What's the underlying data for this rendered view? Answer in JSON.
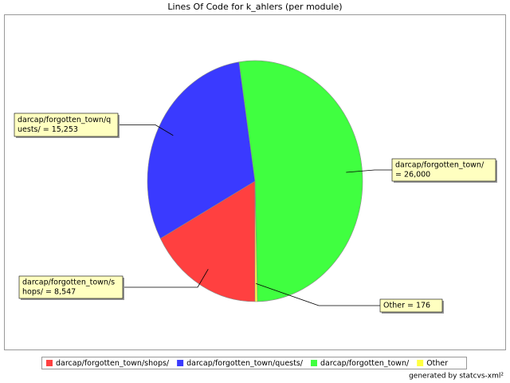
{
  "chart_data": {
    "type": "pie",
    "title": "Lines Of Code for k_ahlers (per module)",
    "categories": [
      "darcap/forgotten_town/shops/",
      "darcap/forgotten_town/quests/",
      "darcap/forgotten_town/",
      "Other"
    ],
    "values": [
      8547,
      15253,
      26000,
      176
    ],
    "value_labels": [
      [
        "darcap/forgotten_town/s",
        "hops/ = 8,547"
      ],
      [
        "darcap/forgotten_town/q",
        "uests/ = 15,253"
      ],
      [
        "darcap/forgotten_town/",
        "= 26,000"
      ],
      [
        "Other = 176"
      ]
    ],
    "colors": [
      "#ff4040",
      "#3a3aff",
      "#40ff40",
      "#ffff40"
    ],
    "legend": "bottom",
    "footer": "generated by statcvs-xml²"
  }
}
